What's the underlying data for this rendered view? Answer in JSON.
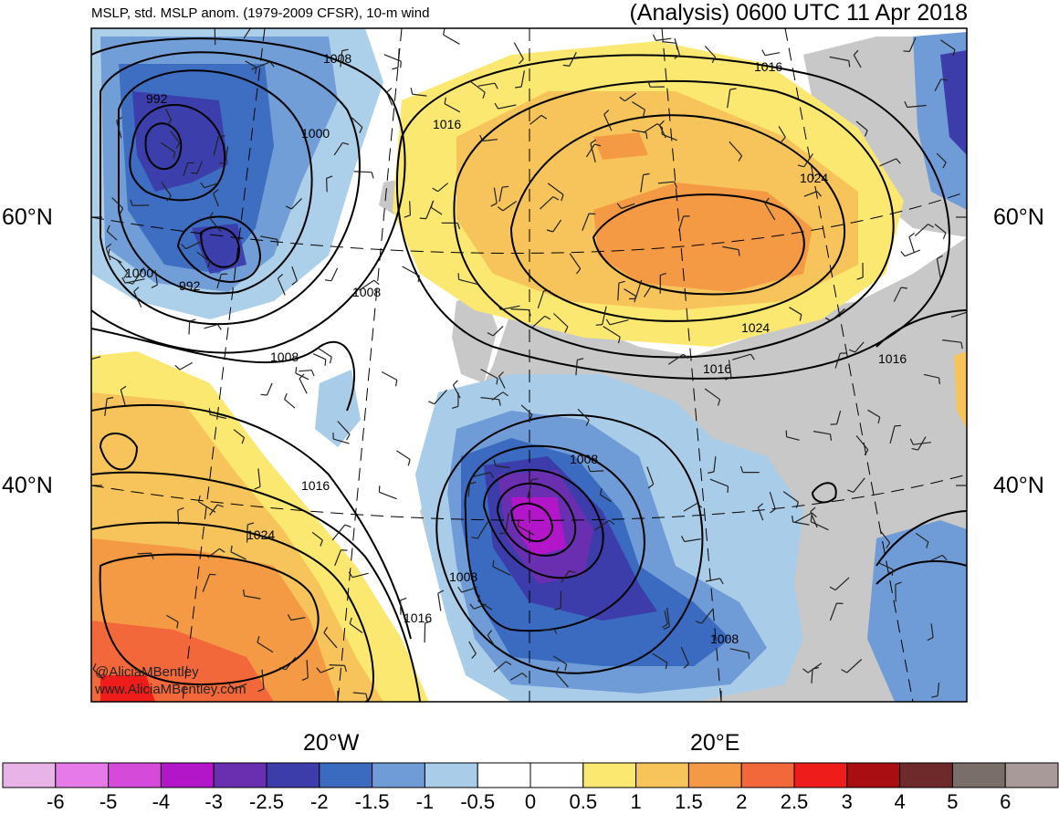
{
  "header": {
    "left_title": "MSLP, std. MSLP anom. (1979-2009 CFSR), 10-m wind",
    "right_title": "(Analysis) 0600 UTC 11 Apr 2018"
  },
  "axes": {
    "lat_labels": [
      "60°N",
      "40°N"
    ],
    "lon_labels": [
      "20°W",
      "20°E"
    ]
  },
  "credits": {
    "handle": "@AliciaMBentley",
    "website": "www.AliciaMBentley.com"
  },
  "contour_labels": [
    "1008",
    "992",
    "1000",
    "992",
    "1000",
    "1008",
    "1008",
    "1016",
    "1016",
    "1024",
    "1024",
    "1016",
    "1016",
    "1008",
    "1008",
    "1016",
    "1016",
    "1024",
    "1008"
  ],
  "colorbar": {
    "ticks": [
      "-6",
      "-5",
      "-4",
      "-3",
      "-2.5",
      "-2",
      "-1.5",
      "-1",
      "-0.5",
      "0",
      "0.5",
      "1",
      "1.5",
      "2",
      "2.5",
      "3",
      "4",
      "5",
      "6"
    ],
    "colors": [
      "#e8b3e6",
      "#e67ae8",
      "#d64ad9",
      "#b316c9",
      "#6a2fb0",
      "#3c3caa",
      "#3a6bc0",
      "#6f9bd6",
      "#a9cde9",
      "#ffffff",
      "#ffffff",
      "#fbe870",
      "#f6c45a",
      "#f59a44",
      "#f3683a",
      "#ef1c1c",
      "#a80e12",
      "#6e2a2a",
      "#7a6e6a",
      "#a89a98"
    ]
  },
  "colors": {
    "land": "#c8c8c8",
    "ocean": "#ffffff"
  }
}
